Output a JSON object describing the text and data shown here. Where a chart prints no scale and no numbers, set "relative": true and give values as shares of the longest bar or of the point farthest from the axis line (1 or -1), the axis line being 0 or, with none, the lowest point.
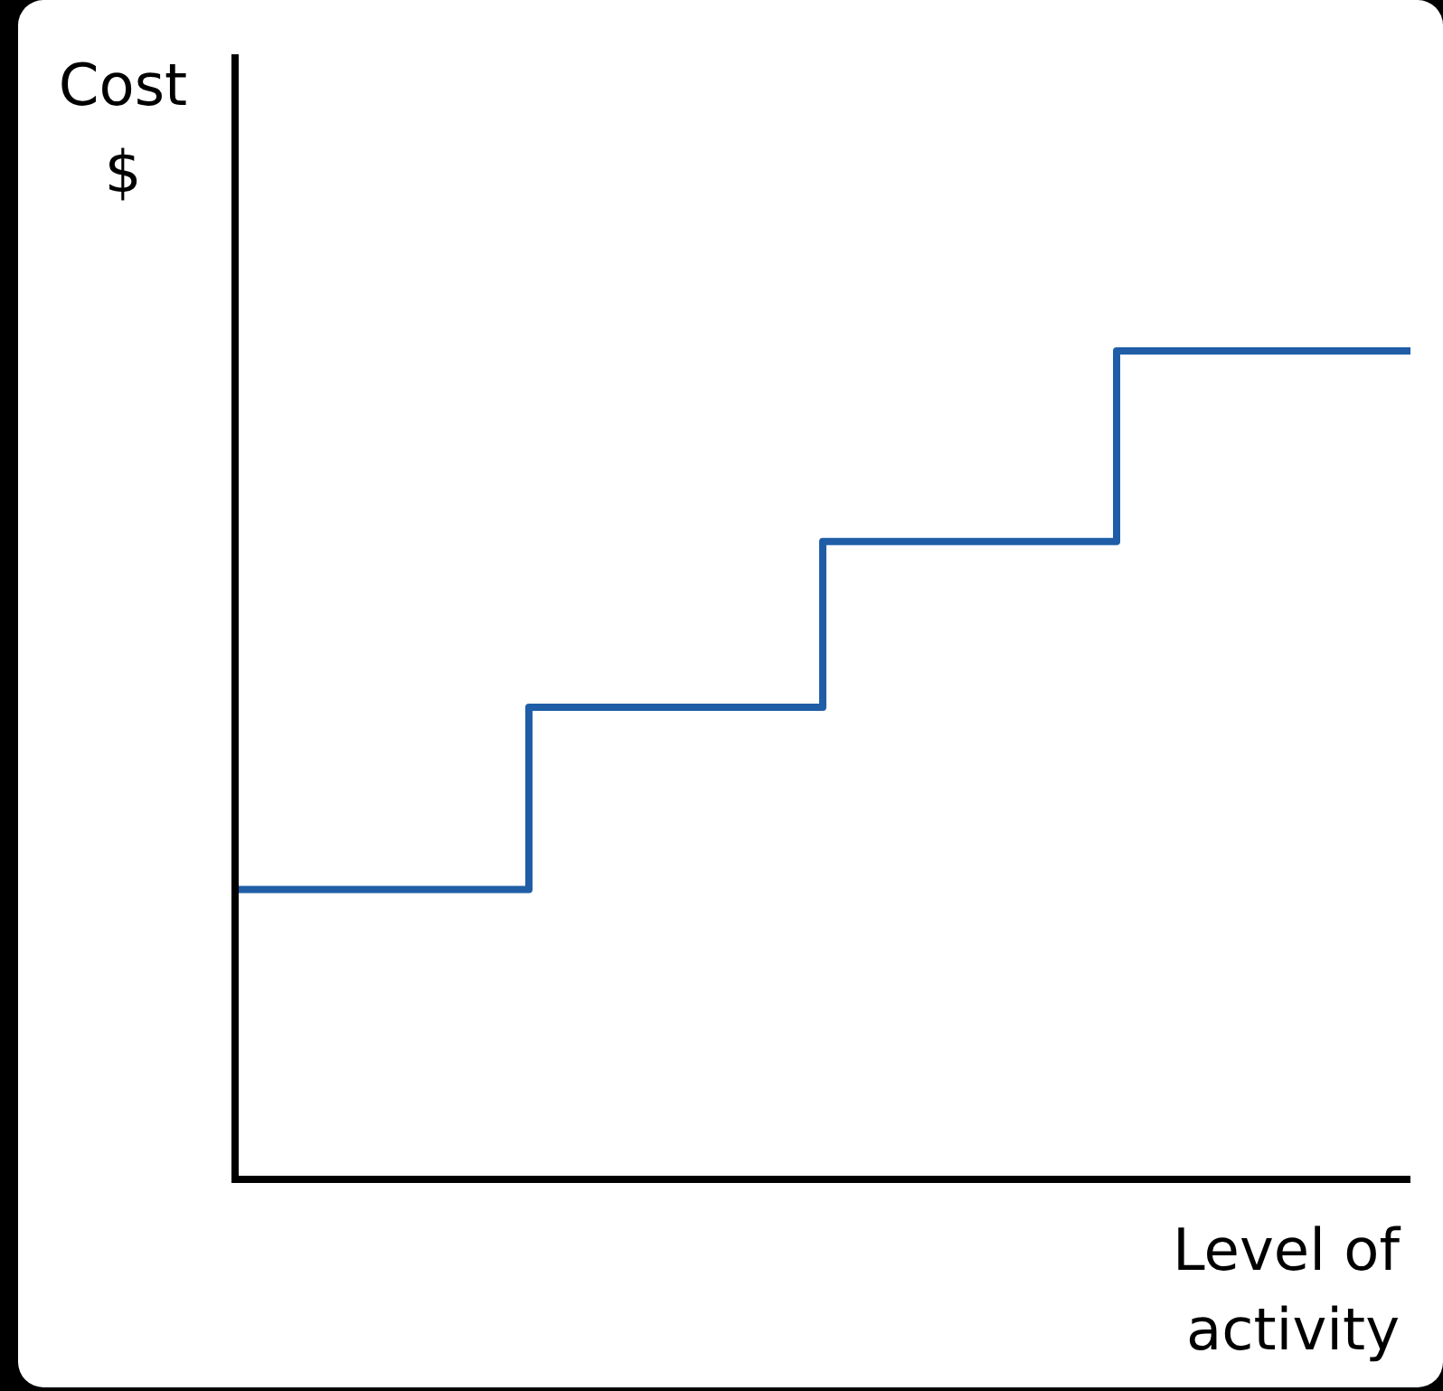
{
  "chart_data": {
    "type": "step",
    "xlabel": "Level of activity",
    "ylabel": "Cost $",
    "relative": true,
    "categories": [
      null,
      null,
      null,
      null,
      null
    ],
    "series": [
      {
        "color": "#1f5ea6",
        "values": [
          0.35,
          0.57,
          0.77,
          1,
          1
        ]
      }
    ]
  }
}
